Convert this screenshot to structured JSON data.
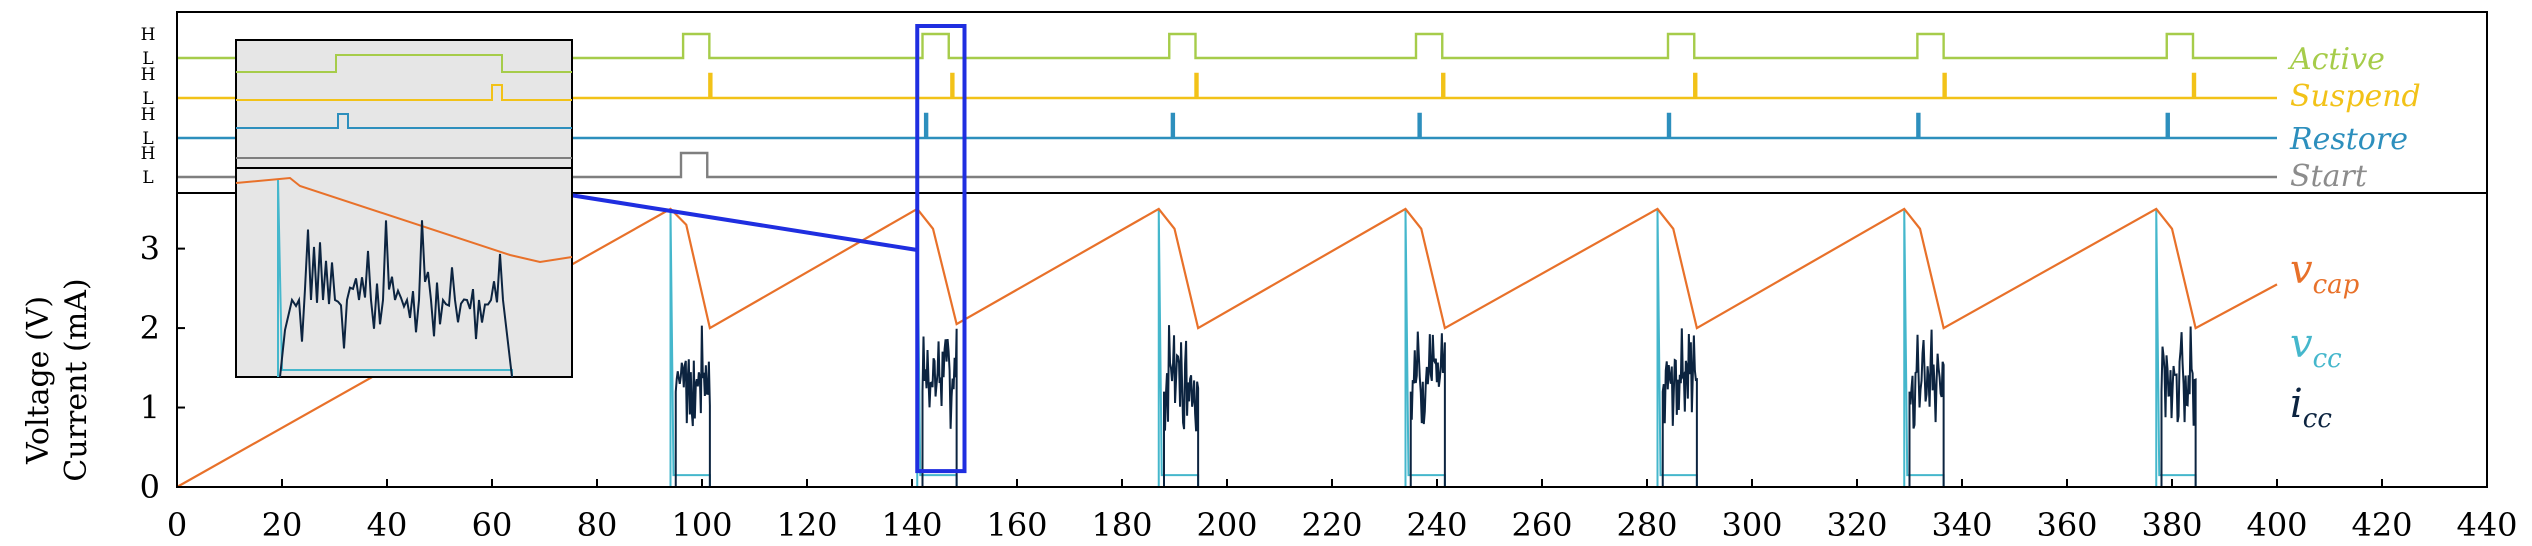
{
  "chart_data": {
    "type": "line",
    "x": {
      "range": [
        0,
        440
      ],
      "ticks": [
        0,
        20,
        40,
        60,
        80,
        100,
        120,
        140,
        160,
        180,
        200,
        220,
        240,
        260,
        280,
        300,
        320,
        340,
        360,
        380,
        400,
        420,
        440
      ]
    },
    "y": {
      "label_lines": [
        "Voltage (V)",
        "Current (mA)"
      ],
      "range": [
        0,
        3.7
      ],
      "ticks": [
        0,
        1,
        2,
        3
      ]
    },
    "digital_levels": {
      "high": "H",
      "low": "L"
    },
    "signals": [
      {
        "name": "Active",
        "color": "#a6cc4a",
        "high_intervals": [
          [
            96.4,
            101.4
          ],
          [
            142,
            147
          ],
          [
            189,
            194
          ],
          [
            236,
            241
          ],
          [
            284,
            289
          ],
          [
            331.5,
            336.5
          ],
          [
            379,
            384
          ]
        ]
      },
      {
        "name": "Suspend",
        "color": "#f2c218",
        "pulses": [
          101.4,
          147.5,
          194,
          241,
          289,
          336.5,
          384
        ]
      },
      {
        "name": "Restore",
        "color": "#2d8fbd",
        "pulses": [
          142.5,
          189.5,
          236.5,
          284,
          331.5,
          379
        ]
      },
      {
        "name": "Start",
        "color": "#7f7f7f",
        "high_intervals": [
          [
            96,
            101
          ]
        ]
      }
    ],
    "series": [
      {
        "name": "v_cap",
        "color": "#e8712a",
        "points": [
          [
            0,
            0
          ],
          [
            94,
            3.5
          ],
          [
            97,
            3.3
          ],
          [
            101.5,
            2.0
          ],
          [
            141,
            3.5
          ],
          [
            144,
            3.25
          ],
          [
            148.5,
            2.05
          ],
          [
            187,
            3.5
          ],
          [
            190,
            3.25
          ],
          [
            194.5,
            2.0
          ],
          [
            234,
            3.5
          ],
          [
            237,
            3.25
          ],
          [
            241.5,
            2.0
          ],
          [
            282,
            3.5
          ],
          [
            285,
            3.25
          ],
          [
            289.5,
            2.0
          ],
          [
            329,
            3.5
          ],
          [
            332,
            3.25
          ],
          [
            336.5,
            2.0
          ],
          [
            377,
            3.5
          ],
          [
            380,
            3.25
          ],
          [
            384.5,
            2.0
          ],
          [
            400,
            2.55
          ]
        ]
      },
      {
        "name": "v_cc",
        "color": "#45b7cc",
        "pulses": [
          [
            94,
            101.5
          ],
          [
            141,
            148.5
          ],
          [
            187,
            194.5
          ],
          [
            234,
            241.5
          ],
          [
            282,
            289.5
          ],
          [
            329,
            336.5
          ],
          [
            377,
            384.5
          ]
        ],
        "high_value": 3.5
      },
      {
        "name": "i_cc",
        "color": "#0c2440",
        "bursts_start": [
          95,
          142,
          188,
          235,
          283,
          330,
          378
        ],
        "burst_duration": 6.5,
        "range": [
          0.7,
          2.05
        ]
      }
    ],
    "zoom_box": {
      "x_range": [
        141,
        150
      ],
      "signal_top": true,
      "y_bottom": 0.2
    }
  },
  "labels": {
    "y_line1": "Voltage (V)",
    "y_line2": "Current (mA)",
    "vcap": "v",
    "vcap_sub": "cap",
    "vcc": "v",
    "vcc_sub": "cc",
    "icc": "i",
    "icc_sub": "cc",
    "active": "Active",
    "suspend": "Suspend",
    "restore": "Restore",
    "start": "Start"
  }
}
